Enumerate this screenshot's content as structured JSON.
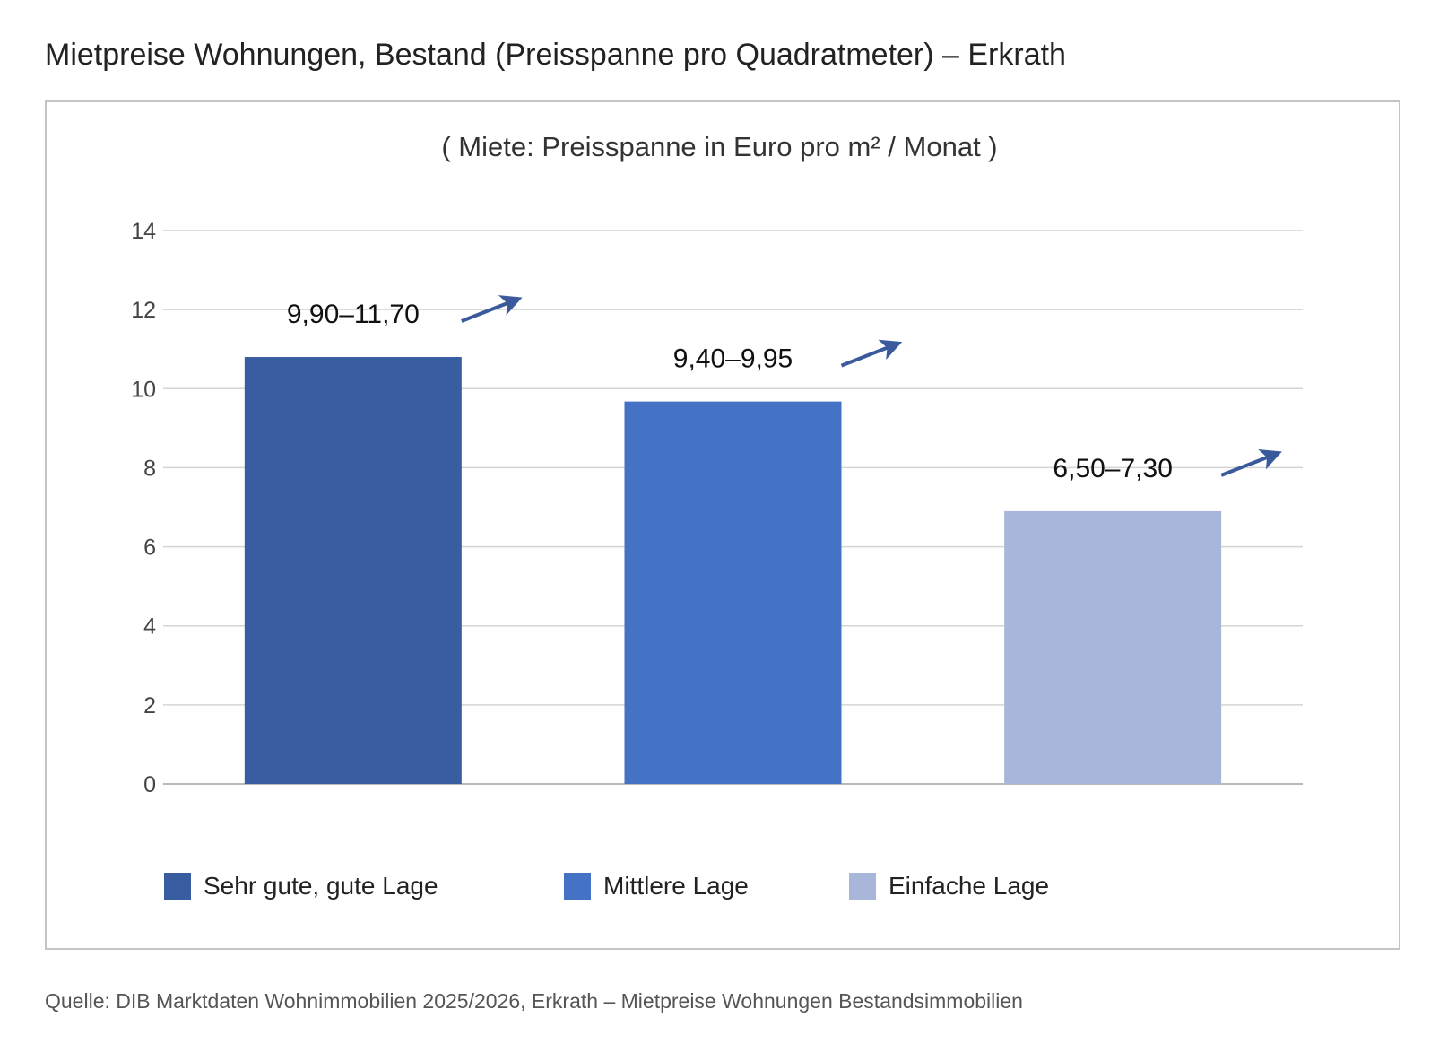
{
  "title": "Mietpreise Wohnungen, Bestand (Preisspanne pro Quadratmeter) – Erkrath",
  "source": "Quelle: DIB Marktdaten Wohnimmobilien 2025/2026, Erkrath – Mietpreise Wohnungen Bestandsimmobilien",
  "chart_data": {
    "type": "bar",
    "title": "( Miete: Preisspanne in Euro pro m² / Monat )",
    "categories": [
      "Sehr gute, gute Lage",
      "Mittlere Lage",
      "Einfache Lage"
    ],
    "values": [
      10.8,
      9.675,
      6.9
    ],
    "data_labels": [
      "9,90–11,70",
      "9,40–9,95",
      "6,50–7,30"
    ],
    "trend": [
      "up",
      "up",
      "up"
    ],
    "colors": [
      "#385da1",
      "#4472c4",
      "#a8b6da"
    ],
    "arrow_color": "#3a5a9c",
    "ylim": [
      0,
      14
    ],
    "yticks": [
      0,
      2,
      4,
      6,
      8,
      10,
      12,
      14
    ],
    "grid": true,
    "legend": "bottom",
    "xlabel": "",
    "ylabel": ""
  }
}
